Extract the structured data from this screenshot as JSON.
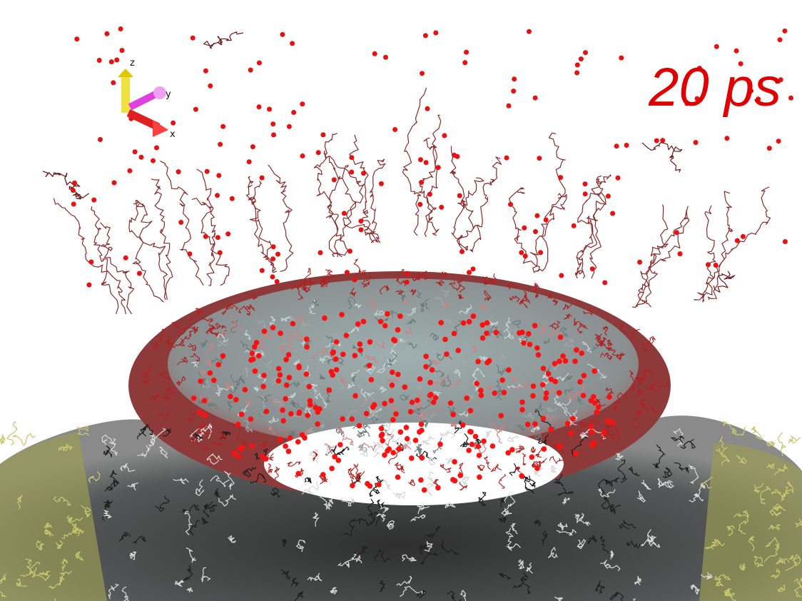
{
  "time_label": "20 ps",
  "axes": {
    "z": "z",
    "y": "y",
    "x": "x"
  }
}
